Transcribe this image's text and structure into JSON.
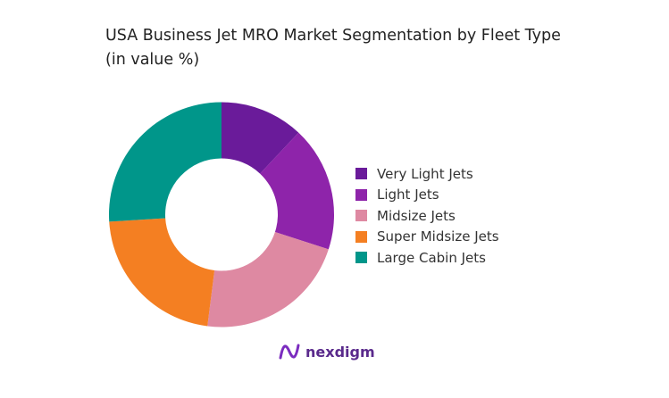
{
  "chart_data": {
    "type": "pie",
    "variant": "donut",
    "title": "USA Business Jet MRO Market Segmentation by Fleet Type (in value %)",
    "categories": [
      "Very Light Jets",
      "Light Jets",
      "Midsize Jets",
      "Super Midsize Jets",
      "Large Cabin Jets"
    ],
    "values": [
      12,
      18,
      22,
      22,
      26
    ],
    "unit": "%",
    "colors": [
      "#6a1b9a",
      "#8e24aa",
      "#de89a2",
      "#f47f22",
      "#00968a"
    ],
    "legend_position": "right"
  },
  "branding": {
    "logo_text": "nexdigm",
    "logo_color": "#5a2a8c"
  }
}
